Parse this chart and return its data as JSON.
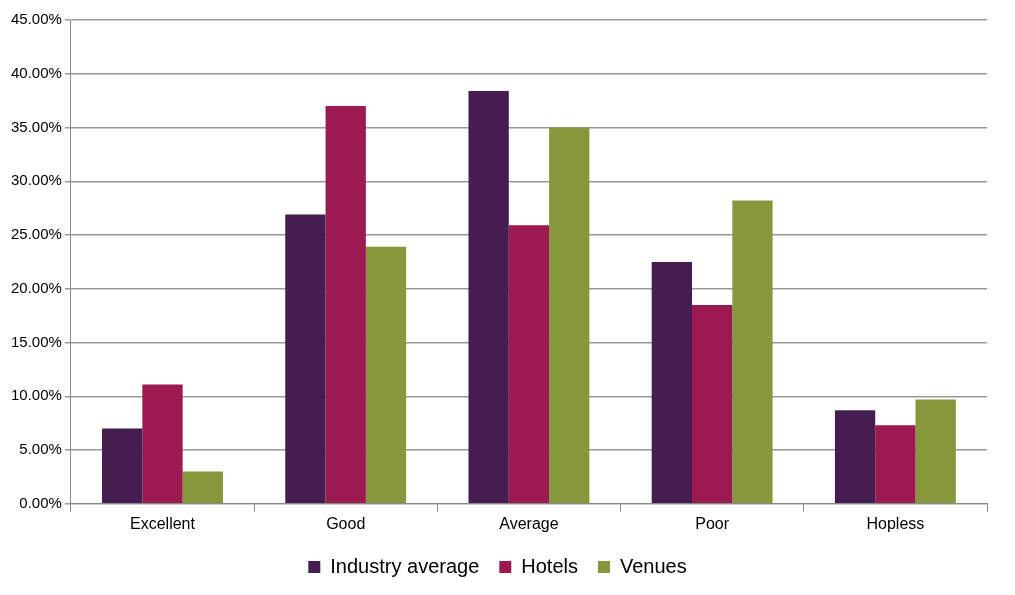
{
  "chart_data": {
    "type": "bar",
    "categories": [
      "Excellent",
      "Good",
      "Average",
      "Poor",
      "Hopless"
    ],
    "series": [
      {
        "name": "Industry average",
        "color": "#461d50",
        "values": [
          7.0,
          26.9,
          38.4,
          22.5,
          8.7
        ]
      },
      {
        "name": "Hotels",
        "color": "#9b1b51",
        "values": [
          11.1,
          37.0,
          25.9,
          18.5,
          7.3
        ]
      },
      {
        "name": "Venues",
        "color": "#85983c",
        "values": [
          3.0,
          23.9,
          35.0,
          28.2,
          9.7
        ]
      }
    ],
    "ylim": [
      0,
      45
    ],
    "yticks": [
      {
        "value": 0,
        "label": "0.00%"
      },
      {
        "value": 5,
        "label": "5.00%"
      },
      {
        "value": 10,
        "label": "10.00%"
      },
      {
        "value": 15,
        "label": "15.00%"
      },
      {
        "value": 20,
        "label": "20.00%"
      },
      {
        "value": 25,
        "label": "25.00%"
      },
      {
        "value": 30,
        "label": "30.00%"
      },
      {
        "value": 35,
        "label": "35.00%"
      },
      {
        "value": 40,
        "label": "40.00%"
      },
      {
        "value": 45,
        "label": "45.00%"
      }
    ],
    "grid": "y",
    "legend": "bottom"
  }
}
